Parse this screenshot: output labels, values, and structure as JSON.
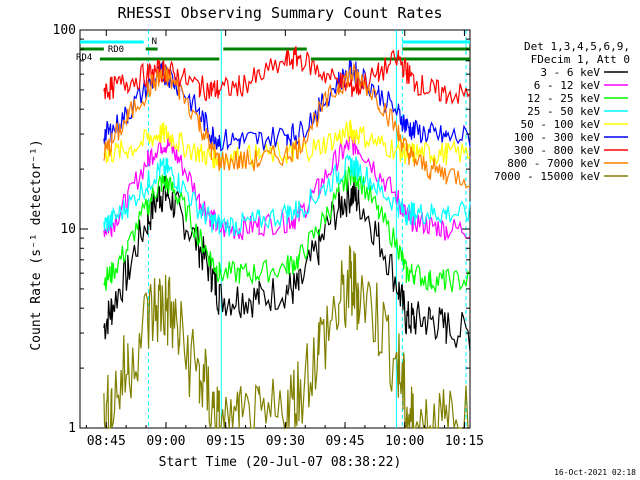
{
  "chart_data": {
    "type": "line",
    "title": "RHESSI Observing Summary Count Rates",
    "xlabel": "Start Time (20-Jul-07 08:38:22)",
    "ylabel": "Count Rate (s⁻¹ detector⁻¹)",
    "yscale": "log",
    "ylim": [
      1,
      100
    ],
    "xlim_minutes": [
      0,
      98
    ],
    "x_unit": "minutes after 08:38:22",
    "x_ticks": [
      {
        "label": "08:45",
        "value": 6.6
      },
      {
        "label": "09:00",
        "value": 21.6
      },
      {
        "label": "09:15",
        "value": 36.6
      },
      {
        "label": "09:30",
        "value": 51.6
      },
      {
        "label": "09:45",
        "value": 66.6
      },
      {
        "label": "10:00",
        "value": 81.6
      },
      {
        "label": "10:15",
        "value": 96.6
      }
    ],
    "y_ticks": [
      {
        "label": "1",
        "value": 1
      },
      {
        "label": "10",
        "value": 10
      },
      {
        "label": "100",
        "value": 100
      }
    ],
    "legend": {
      "header": [
        "Det 1,3,4,5,6,9,",
        "FDecim 1, Att 0"
      ],
      "placement": "right"
    },
    "flags": {
      "N": "N",
      "RD0": "RD0",
      "RD4": "RD4"
    },
    "footer_timestamp": "16-Oct-2021 02:18",
    "x": [
      0,
      6,
      8,
      12,
      17,
      20,
      22,
      25,
      30,
      33,
      35,
      40,
      45,
      52,
      55,
      60,
      65,
      68,
      70,
      75,
      80,
      82,
      84,
      88,
      92,
      98
    ],
    "series": [
      {
        "name": "3 - 6 keV",
        "color": "#000000",
        "values": [
          null,
          3.2,
          4.0,
          6.0,
          11,
          15,
          15,
          12,
          8,
          6,
          4.5,
          4.5,
          4.5,
          5,
          5,
          8,
          13,
          15,
          14,
          9,
          5,
          3.5,
          3.5,
          3.5,
          3.2,
          3.0
        ]
      },
      {
        "name": "6 - 12 keV",
        "color": "#ff00ff",
        "values": [
          null,
          10,
          10.5,
          14,
          22,
          27,
          27,
          22,
          14,
          11.5,
          10,
          10,
          10.5,
          11,
          11.5,
          16,
          23,
          27,
          26,
          19,
          14,
          11.5,
          11,
          10.5,
          10,
          10
        ]
      },
      {
        "name": "12 - 25 keV",
        "color": "#00ff00",
        "values": [
          null,
          5.5,
          6.0,
          8.0,
          13,
          17,
          17,
          14,
          9,
          7,
          6,
          6,
          6,
          6.5,
          7,
          10,
          15,
          19,
          18,
          12,
          8,
          6,
          6,
          5.5,
          5.5,
          5.5
        ]
      },
      {
        "name": "25 - 50 keV",
        "color": "#00ffff",
        "values": [
          null,
          10.5,
          11,
          13,
          17,
          20,
          20,
          17,
          12.5,
          11,
          10.5,
          10.5,
          11,
          12,
          12.5,
          15,
          19,
          21,
          20,
          16,
          13,
          12,
          12,
          12,
          12,
          12
        ]
      },
      {
        "name": "50 - 100 keV",
        "color": "#ffff00",
        "values": [
          null,
          24,
          24,
          25,
          28,
          30,
          30,
          27,
          24,
          23,
          23,
          23,
          23.5,
          24,
          24.5,
          26,
          29,
          31,
          30,
          27,
          25,
          24,
          24,
          24,
          24,
          24
        ]
      },
      {
        "name": "100 - 300 keV",
        "color": "#0000ff",
        "values": [
          null,
          30,
          31,
          38,
          52,
          60,
          60,
          52,
          38,
          30,
          28,
          28,
          28,
          30,
          30,
          40,
          55,
          62,
          60,
          48,
          38,
          33,
          31,
          30,
          29,
          29
        ]
      },
      {
        "name": "300 - 800 keV",
        "color": "#ff0000",
        "values": [
          null,
          50,
          51,
          55,
          60,
          62,
          62,
          58,
          52,
          50,
          50,
          52,
          58,
          70,
          73,
          62,
          55,
          52,
          52,
          60,
          72,
          62,
          55,
          50,
          48,
          47
        ]
      },
      {
        "name": "800 - 7000 keV",
        "color": "#ff8000",
        "values": [
          null,
          24,
          27,
          36,
          50,
          58,
          58,
          50,
          34,
          25,
          22,
          22,
          22,
          24,
          26,
          38,
          52,
          60,
          58,
          45,
          30,
          25,
          22,
          20,
          19,
          18
        ]
      },
      {
        "name": "7000 - 15000 keV",
        "color": "#808000",
        "values": [
          null,
          1.0,
          1.3,
          2.0,
          3.5,
          4.2,
          4.0,
          2.8,
          1.8,
          1.3,
          1.0,
          1.0,
          1.0,
          1.2,
          1.5,
          2.5,
          4.0,
          5.2,
          5.0,
          3.5,
          2.0,
          1.2,
          1.0,
          1.0,
          1.0,
          1.0
        ]
      }
    ]
  }
}
